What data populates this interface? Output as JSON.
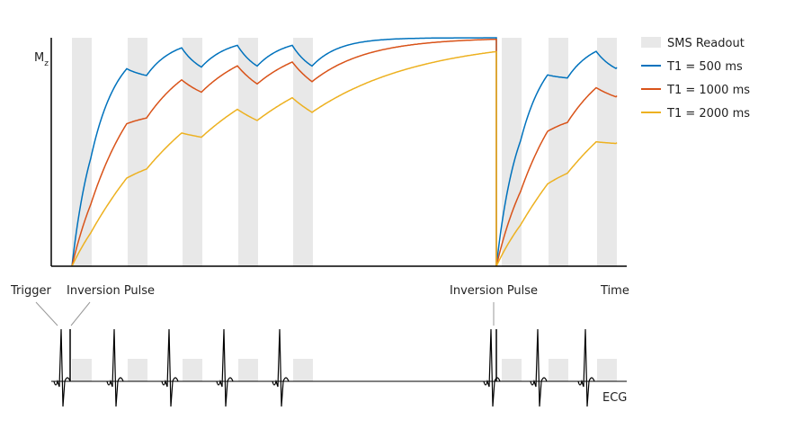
{
  "axis_label": {
    "main": "M",
    "sub": "z"
  },
  "legend": [
    {
      "label": "SMS Readout",
      "color": "#e8e8e8"
    },
    {
      "label": "T1 = 500 ms",
      "color": "#0072bd"
    },
    {
      "label": "T1 = 1000 ms",
      "color": "#d95319"
    },
    {
      "label": "T1 = 2000 ms",
      "color": "#edb120"
    }
  ],
  "annotations": {
    "trigger": "Trigger",
    "inversion_1": "Inversion Pulse",
    "inversion_2": "Inversion Pulse",
    "time": "Time",
    "ecg": "ECG"
  }
}
